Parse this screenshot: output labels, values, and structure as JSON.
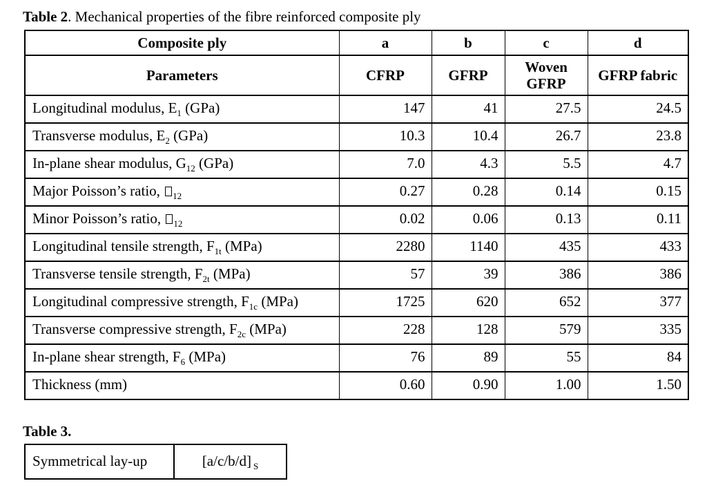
{
  "table2": {
    "caption_bold": "Table 2",
    "caption_rest": ". Mechanical properties of the fibre reinforced composite ply",
    "header_row1": {
      "param": "Composite ply",
      "cols": [
        "a",
        "b",
        "c",
        "d"
      ]
    },
    "header_row2": {
      "param": "Parameters",
      "cols": [
        "CFRP",
        "GFRP",
        "Woven GFRP",
        "GFRP fabric"
      ]
    },
    "rows": [
      {
        "label": [
          {
            "t": "Longitudinal modulus, E"
          },
          {
            "s": "1"
          },
          {
            "t": " (GPa)"
          }
        ],
        "values": [
          "147",
          "41",
          "27.5",
          "24.5"
        ]
      },
      {
        "label": [
          {
            "t": "Transverse modulus, E"
          },
          {
            "s": "2"
          },
          {
            "t": " (GPa)"
          }
        ],
        "values": [
          "10.3",
          "10.4",
          "26.7",
          "23.8"
        ]
      },
      {
        "label": [
          {
            "t": "In-plane shear modulus, G"
          },
          {
            "s": "12"
          },
          {
            "t": " (GPa)"
          }
        ],
        "values": [
          "7.0",
          "4.3",
          "5.5",
          "4.7"
        ]
      },
      {
        "label": [
          {
            "t": "Major Poisson’s ratio, "
          },
          {
            "b": true
          },
          {
            "s": "12"
          }
        ],
        "values": [
          "0.27",
          "0.28",
          "0.14",
          "0.15"
        ]
      },
      {
        "label": [
          {
            "t": "Minor Poisson’s ratio, "
          },
          {
            "b": true
          },
          {
            "s": "12"
          }
        ],
        "values": [
          "0.02",
          "0.06",
          "0.13",
          "0.11"
        ]
      },
      {
        "label": [
          {
            "t": "Longitudinal tensile strength, F"
          },
          {
            "s": "1t"
          },
          {
            "t": " (MPa)"
          }
        ],
        "values": [
          "2280",
          "1140",
          "435",
          "433"
        ]
      },
      {
        "label": [
          {
            "t": "Transverse tensile strength, F"
          },
          {
            "s": "2t"
          },
          {
            "t": " (MPa)"
          }
        ],
        "values": [
          "57",
          "39",
          "386",
          "386"
        ]
      },
      {
        "label": [
          {
            "t": "Longitudinal compressive strength, F"
          },
          {
            "s": "1c"
          },
          {
            "t": " (MPa)"
          }
        ],
        "values": [
          "1725",
          "620",
          "652",
          "377"
        ]
      },
      {
        "label": [
          {
            "t": "Transverse compressive strength, F"
          },
          {
            "s": "2c"
          },
          {
            "t": " (MPa)"
          }
        ],
        "values": [
          "228",
          "128",
          "579",
          "335"
        ]
      },
      {
        "label": [
          {
            "t": "In-plane shear strength, F"
          },
          {
            "s": "6"
          },
          {
            "t": " (MPa)"
          }
        ],
        "values": [
          "76",
          "89",
          "55",
          "84"
        ]
      },
      {
        "label": [
          {
            "t": "Thickness (mm)"
          }
        ],
        "values": [
          "0.60",
          "0.90",
          "1.00",
          "1.50"
        ]
      }
    ]
  },
  "table3": {
    "caption": "Table 3.",
    "row_label": "Symmetrical lay-up",
    "layup": [
      {
        "t": "[a/c/b/d]"
      },
      {
        "s": "S"
      }
    ]
  }
}
